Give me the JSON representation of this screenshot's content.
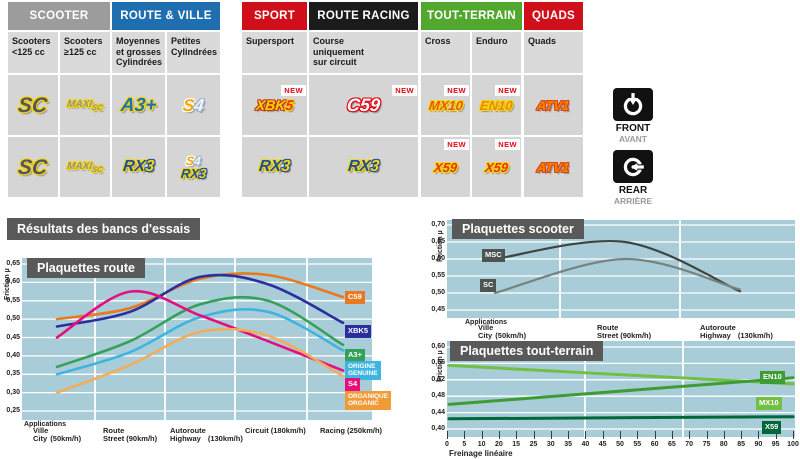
{
  "section_title": "Résultats des bancs d'essais",
  "table": {
    "new_badge": "NEW",
    "groups": [
      {
        "label": "SCOOTER",
        "color": "#9c9c9c"
      },
      {
        "label": "ROUTE & VILLE",
        "color": "#1e6eb0"
      },
      {
        "label": "SPORT",
        "color": "#d10f1a"
      },
      {
        "label": "ROUTE RACING",
        "color": "#1b1b1b"
      },
      {
        "label": "TOUT-TERRAIN",
        "color": "#52a72f"
      },
      {
        "label": "QUADS",
        "color": "#d10f1a"
      }
    ],
    "columns": [
      {
        "subheader": [
          "Scooters",
          "<125 cc"
        ],
        "front": {
          "logo": "SC",
          "new": false
        },
        "rear": {
          "logos": [
            "SC"
          ],
          "new": false
        }
      },
      {
        "subheader": [
          "Scooters",
          "≥125 cc"
        ],
        "front": {
          "logo": "MAXISC",
          "new": false
        },
        "rear": {
          "logos": [
            "MAXISC"
          ],
          "new": false
        }
      },
      {
        "subheader": [
          "Moyennes",
          "et grosses",
          "Cylindrées"
        ],
        "front": {
          "logo": "A3",
          "new": false
        },
        "rear": {
          "logos": [
            "RX3"
          ],
          "new": false
        }
      },
      {
        "subheader": [
          "Petites",
          "Cylindrées"
        ],
        "front": {
          "logo": "S4",
          "new": false
        },
        "rear": {
          "logos": [
            "S4S",
            "RX3S"
          ],
          "new": false
        }
      },
      {
        "subheader": [
          "Supersport"
        ],
        "front": {
          "logo": "XBK5",
          "new": true
        },
        "rear": {
          "logos": [
            "RX3"
          ],
          "new": false
        }
      },
      {
        "subheader": [
          "Course",
          "uniquement",
          "sur circuit"
        ],
        "front": {
          "logo": "C59",
          "new": true
        },
        "rear": {
          "logos": [
            "RX3"
          ],
          "new": false
        }
      },
      {
        "subheader": [
          "Cross"
        ],
        "front": {
          "logo": "MX10",
          "new": true
        },
        "rear": {
          "logos": [
            "X59"
          ],
          "new": true
        }
      },
      {
        "subheader": [
          "Enduro"
        ],
        "front": {
          "logo": "EN10",
          "new": true
        },
        "rear": {
          "logos": [
            "X59"
          ],
          "new": true
        }
      },
      {
        "subheader": [
          "Quads"
        ],
        "front": {
          "logo": "ATV1",
          "new": false
        },
        "rear": {
          "logos": [
            "ATV1"
          ],
          "new": false
        }
      }
    ],
    "side": {
      "front_label": "FRONT",
      "front_sub": "AVANT",
      "rear_label": "REAR",
      "rear_sub": "ARRIÈRE"
    }
  },
  "logos": {
    "SC": {
      "size": 21,
      "parts": [
        {
          "t": "SC",
          "c": "#55565a",
          "o": "#f5d60f"
        }
      ]
    },
    "MAXISC": {
      "size": 10,
      "parts": [
        {
          "t": "MAXI",
          "c": "#909297",
          "o": "#f5d60f"
        },
        {
          "t": "SC",
          "c": "#909297",
          "o": "#f5d60f",
          "size": 8,
          "dy": 3
        }
      ]
    },
    "A3": {
      "size": 19,
      "parts": [
        {
          "t": "A3+",
          "c": "#1d71b8",
          "o": "#f5d60f"
        }
      ]
    },
    "S4": {
      "size": 17,
      "parts": [
        {
          "t": "S",
          "c": "#f7a600",
          "o": "#ffffff"
        },
        {
          "t": "4",
          "c": "#f2f5f8",
          "o": "#9fb6cf"
        }
      ]
    },
    "XBK5": {
      "size": 14,
      "parts": [
        {
          "t": "XBK",
          "c": "#ffd100",
          "o": "#c23a16"
        },
        {
          "t": "5",
          "c": "#e6340e",
          "o": "#ffd100"
        }
      ]
    },
    "C59": {
      "size": 18,
      "parts": [
        {
          "t": "C59",
          "c": "#ffffff",
          "o": "#e30613"
        }
      ]
    },
    "MX10": {
      "size": 13,
      "parts": [
        {
          "t": "MX10",
          "c": "#e8570e",
          "o": "#f5d60f"
        }
      ]
    },
    "EN10": {
      "size": 13,
      "parts": [
        {
          "t": "EN10",
          "c": "#f08700",
          "o": "#f5d60f"
        }
      ]
    },
    "ATV1": {
      "size": 13,
      "parts": [
        {
          "t": "ATV1",
          "c": "#f08700",
          "o": "#e0420f"
        }
      ]
    },
    "RX3": {
      "size": 16,
      "parts": [
        {
          "t": "RX",
          "c": "#1d4f9c",
          "o": "#f5d60f"
        },
        {
          "t": "3",
          "c": "#f5d60f",
          "o": "#1d4f9c"
        }
      ]
    },
    "RX3S": {
      "size": 13,
      "parts": [
        {
          "t": "RX",
          "c": "#1d4f9c",
          "o": "#f5d60f"
        },
        {
          "t": "3",
          "c": "#f5d60f",
          "o": "#1d4f9c"
        }
      ]
    },
    "S4S": {
      "size": 12,
      "parts": [
        {
          "t": "S",
          "c": "#f7a600",
          "o": "#ffffff"
        },
        {
          "t": "4",
          "c": "#f2f5f8",
          "o": "#9fb6cf"
        }
      ]
    },
    "X59": {
      "size": 13,
      "parts": [
        {
          "t": "X59",
          "c": "#e6340e",
          "o": "#f5d60f"
        }
      ]
    }
  },
  "chart_data": [
    {
      "type": "line",
      "title": "Plaquettes route",
      "ylabel": "Friction µ",
      "applications_label": "Applications",
      "ylim": [
        0.25,
        0.65
      ],
      "yticks": [
        "0,65",
        "0,60",
        "0,55",
        "0,50",
        "0,45",
        "0,40",
        "0,35",
        "0,30",
        "0,25"
      ],
      "categories": [
        {
          "fr": "Ville",
          "en": "City",
          "speed": "(50km/h)"
        },
        {
          "fr": "Route",
          "en": "Street",
          "speed": "(90km/h)"
        },
        {
          "fr": "Autoroute",
          "en": "Highway",
          "speed": "(130km/h)"
        },
        {
          "fr": "Circuit",
          "en": "",
          "speed": "(180km/h)"
        },
        {
          "fr": "Racing",
          "en": "",
          "speed": "(250km/h)"
        }
      ],
      "plot_bg": "#a9cdd8",
      "series": [
        {
          "name": "C59",
          "color": "#e8791e",
          "values": [
            0.5,
            0.53,
            0.61,
            0.62,
            0.56
          ],
          "label": [
            "C59"
          ],
          "label_bg": "#e8791e"
        },
        {
          "name": "XBK5",
          "color": "#2b2f9e",
          "values": [
            0.48,
            0.52,
            0.615,
            0.595,
            0.49
          ],
          "label": [
            "XBK5"
          ],
          "label_bg": "#2b2f9e"
        },
        {
          "name": "A3+",
          "color": "#35a05a",
          "values": [
            0.37,
            0.44,
            0.54,
            0.55,
            0.43
          ],
          "label": [
            "A3+"
          ],
          "label_bg": "#35a05a"
        },
        {
          "name": "Origine / Genuine",
          "color": "#3fb4e0",
          "values": [
            0.35,
            0.41,
            0.505,
            0.52,
            0.415
          ],
          "label": [
            "ORIGINE",
            "GENUINE"
          ],
          "label_bg": "#3fb4e0"
        },
        {
          "name": "S4",
          "color": "#e50f7e",
          "values": [
            0.45,
            0.575,
            0.51,
            0.44,
            0.36
          ],
          "label": [
            "S4"
          ],
          "label_bg": "#e50f7e"
        },
        {
          "name": "Organique / Organic",
          "color": "#f2ad5c",
          "values": [
            0.3,
            0.375,
            0.465,
            0.455,
            0.345
          ],
          "label": [
            "ORGANIQUE",
            "ORGANIC"
          ],
          "label_bg": "#f09a38"
        }
      ]
    },
    {
      "type": "line",
      "title": "Plaquettes scooter",
      "ylabel": "Friction µ",
      "applications_label": "Applications",
      "ylim": [
        0.45,
        0.7
      ],
      "yticks": [
        "0,70",
        "0,65",
        "0,60",
        "0,55",
        "0,50",
        "0,45"
      ],
      "categories": [
        {
          "fr": "Ville",
          "en": "City",
          "speed": "(50km/h)"
        },
        {
          "fr": "Route",
          "en": "Street",
          "speed": "(90km/h)"
        },
        {
          "fr": "Autoroute",
          "en": "Highway",
          "speed": "(130km/h)"
        }
      ],
      "plot_bg": "#a9cdd8",
      "series": [
        {
          "name": "MSC",
          "color": "#3d4543",
          "values": [
            0.6,
            0.65,
            0.505
          ],
          "label": [
            "MSC"
          ],
          "label_bg": "#4d5553"
        },
        {
          "name": "SC",
          "color": "#76837f",
          "values": [
            0.5,
            0.6,
            0.51
          ],
          "label": [
            "SC"
          ],
          "label_bg": "#4d5553"
        }
      ]
    },
    {
      "type": "line",
      "title": "Plaquettes tout-terrain",
      "ylabel": "Friction µ",
      "xlabel": "Freinage linéaire",
      "ylim": [
        0.4,
        0.6
      ],
      "yticks": [
        "0,60",
        "0,56",
        "0,52",
        "0,48",
        "0,44",
        "0,40"
      ],
      "xticks": [
        "0",
        "5",
        "10",
        "20",
        "15",
        "25",
        "30",
        "35",
        "40",
        "45",
        "50",
        "55",
        "60",
        "65",
        "70",
        "75",
        "80",
        "85",
        "90",
        "95",
        "100"
      ],
      "plot_bg": "#a9cdd8",
      "series": [
        {
          "name": "MX10",
          "color": "#72bf44",
          "values": [
            0.555,
            0.51
          ],
          "label": [
            "MX10"
          ],
          "label_bg": "#72bf44"
        },
        {
          "name": "EN10",
          "color": "#3f9c35",
          "values": [
            0.46,
            0.525
          ],
          "label": [
            "EN10"
          ],
          "label_bg": "#3f9c35"
        },
        {
          "name": "X59",
          "color": "#006838",
          "values": [
            0.425,
            0.43
          ],
          "label": [
            "X59"
          ],
          "label_bg": "#006838"
        }
      ]
    }
  ]
}
